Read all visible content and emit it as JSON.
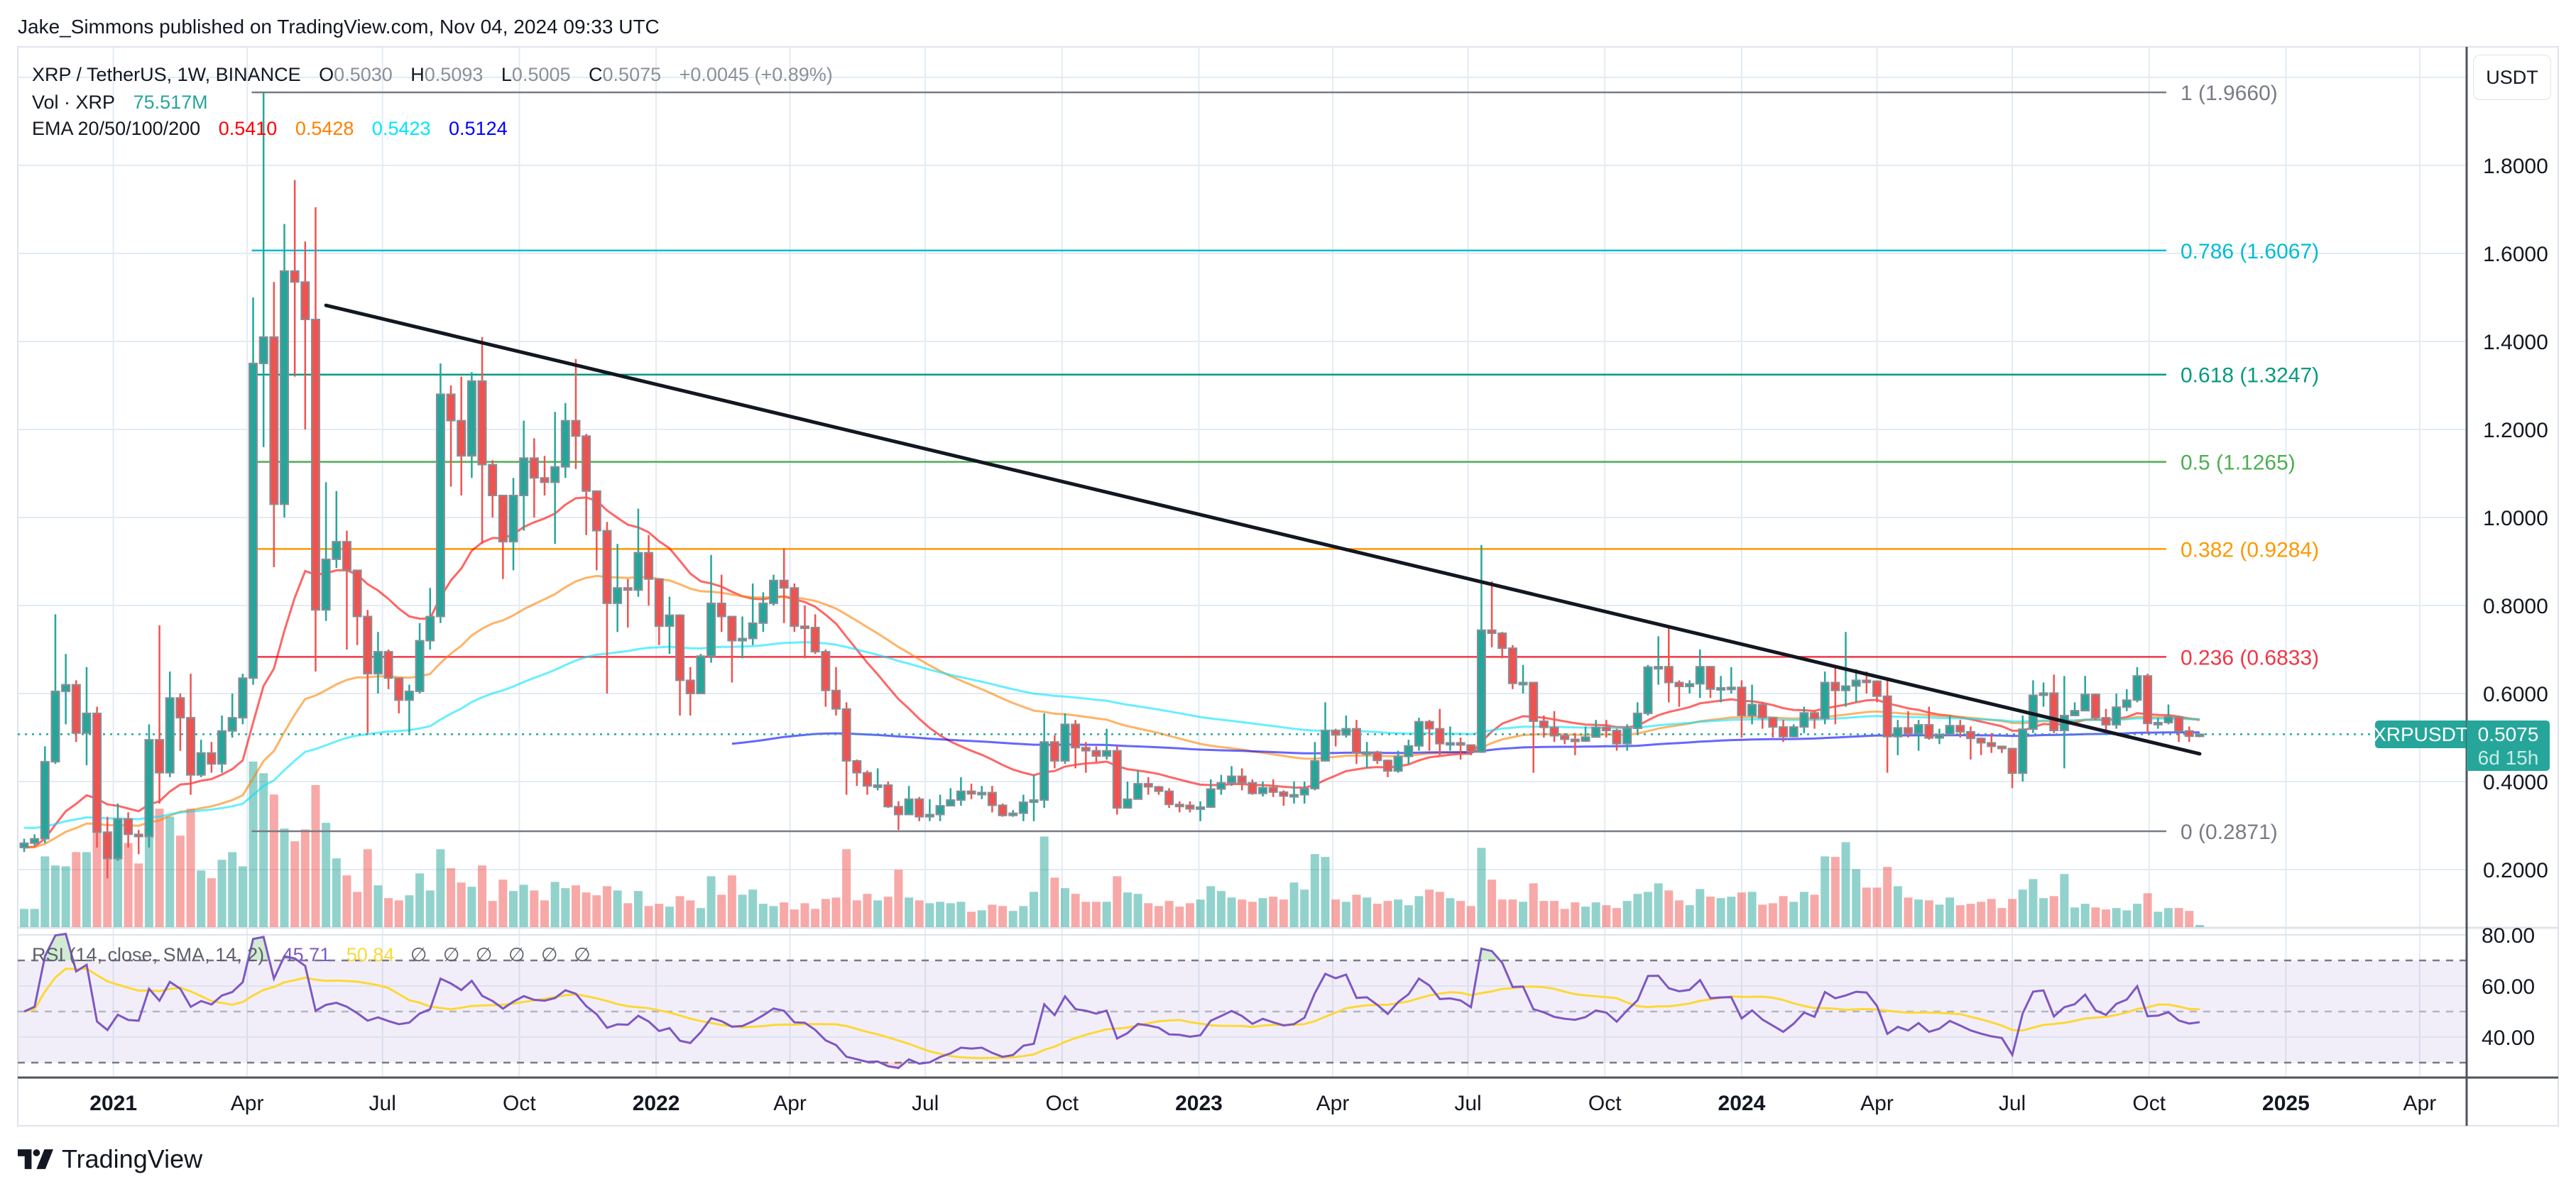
{
  "header": {
    "publisher_line": "Jake_Simmons published on TradingView.com, Nov 04, 2024 09:33 UTC"
  },
  "legend": {
    "symbol": "XRP / TetherUS, 1W, BINANCE",
    "o_label": "O",
    "o_value": "0.5030",
    "h_label": "H",
    "h_value": "0.5093",
    "l_label": "L",
    "l_value": "0.5005",
    "c_label": "C",
    "c_value": "0.5075",
    "change": "+0.0045 (+0.89%)",
    "vol_label": "Vol · XRP",
    "vol_value": "75.517M",
    "ema_label": "EMA 20/50/100/200",
    "ema_values": [
      "0.5410",
      "0.5428",
      "0.5423",
      "0.5124"
    ]
  },
  "price_axis": {
    "currency": "USDT",
    "ticks": [
      "1.8000",
      "1.6000",
      "1.4000",
      "1.2000",
      "1.0000",
      "0.8000",
      "0.6000",
      "0.4000",
      "0.2000"
    ]
  },
  "price_tag": {
    "symbol": "XRPUSDT",
    "price": "0.5075",
    "countdown": "6d 15h",
    "color": "#26a69a"
  },
  "rsi": {
    "legend": "RSI (14, close, SMA, 14, 2)",
    "value": "45.71",
    "sma_value": "50.84",
    "na_values": [
      "∅",
      "∅",
      "∅",
      "∅",
      "∅",
      "∅"
    ],
    "axis_ticks": [
      "80.00",
      "60.00",
      "40.00"
    ],
    "upper": 70,
    "middle": 50,
    "lower": 30,
    "line_color": "#7e57c2",
    "sma_color": "#fdd835"
  },
  "time_axis": [
    {
      "date": "2021-01-01",
      "label": "2021",
      "year": true
    },
    {
      "date": "2021-04-01",
      "label": "Apr"
    },
    {
      "date": "2021-07-01",
      "label": "Jul"
    },
    {
      "date": "2021-10-01",
      "label": "Oct"
    },
    {
      "date": "2022-01-01",
      "label": "2022",
      "year": true
    },
    {
      "date": "2022-04-01",
      "label": "Apr"
    },
    {
      "date": "2022-07-01",
      "label": "Jul"
    },
    {
      "date": "2022-10-01",
      "label": "Oct"
    },
    {
      "date": "2023-01-01",
      "label": "2023",
      "year": true
    },
    {
      "date": "2023-04-01",
      "label": "Apr"
    },
    {
      "date": "2023-07-01",
      "label": "Jul"
    },
    {
      "date": "2023-10-01",
      "label": "Oct"
    },
    {
      "date": "2024-01-01",
      "label": "2024",
      "year": true
    },
    {
      "date": "2024-04-01",
      "label": "Apr"
    },
    {
      "date": "2024-07-01",
      "label": "Jul"
    },
    {
      "date": "2024-10-01",
      "label": "Oct"
    },
    {
      "date": "2025-01-01",
      "label": "2025",
      "year": true
    },
    {
      "date": "2025-04-01",
      "label": "Apr"
    }
  ],
  "footer": {
    "brand": "TradingView"
  },
  "colors": {
    "up": "#26a69a",
    "down": "#ef5350",
    "trendline": "#131722"
  },
  "chart_data": {
    "type": "candlestick",
    "title": "XRP / TetherUS, 1W, BINANCE",
    "interval": "1W",
    "start_week": "2020-11-02",
    "first_open": 0.25,
    "ylim": [
      0.12,
      2.1
    ],
    "grid": true,
    "candles": {
      "close": [
        0.26,
        0.27,
        0.445,
        0.605,
        0.62,
        0.51,
        0.555,
        0.285,
        0.225,
        0.315,
        0.28,
        0.275,
        0.495,
        0.42,
        0.59,
        0.545,
        0.415,
        0.465,
        0.44,
        0.515,
        0.545,
        0.635,
        1.35,
        1.41,
        1.03,
        1.56,
        1.535,
        1.45,
        0.79,
        0.905,
        0.945,
        0.88,
        0.775,
        0.645,
        0.695,
        0.635,
        0.585,
        0.605,
        0.72,
        0.775,
        1.28,
        1.22,
        1.14,
        1.31,
        1.12,
        1.05,
        0.945,
        1.05,
        1.135,
        1.09,
        1.08,
        1.115,
        1.22,
        1.185,
        1.06,
        0.97,
        0.805,
        0.84,
        0.835,
        0.92,
        0.86,
        0.753,
        0.778,
        0.63,
        0.6,
        0.685,
        0.805,
        0.775,
        0.72,
        0.725,
        0.76,
        0.805,
        0.857,
        0.84,
        0.753,
        0.75,
        0.695,
        0.607,
        0.565,
        0.447,
        0.42,
        0.39,
        0.392,
        0.343,
        0.325,
        0.36,
        0.32,
        0.325,
        0.345,
        0.358,
        0.378,
        0.372,
        0.375,
        0.346,
        0.323,
        0.328,
        0.353,
        0.358,
        0.49,
        0.447,
        0.53,
        0.477,
        0.47,
        0.458,
        0.47,
        0.34,
        0.36,
        0.395,
        0.388,
        0.378,
        0.348,
        0.346,
        0.338,
        0.342,
        0.383,
        0.397,
        0.412,
        0.397,
        0.373,
        0.386,
        0.376,
        0.367,
        0.37,
        0.384,
        0.447,
        0.516,
        0.506,
        0.52,
        0.465,
        0.467,
        0.448,
        0.424,
        0.457,
        0.481,
        0.536,
        0.52,
        0.486,
        0.488,
        0.483,
        0.467,
        0.744,
        0.737,
        0.703,
        0.623,
        0.625,
        0.537,
        0.523,
        0.504,
        0.496,
        0.492,
        0.501,
        0.523,
        0.516,
        0.486,
        0.521,
        0.555,
        0.66,
        0.661,
        0.625,
        0.616,
        0.622,
        0.661,
        0.61,
        0.613,
        0.614,
        0.55,
        0.575,
        0.545,
        0.524,
        0.502,
        0.524,
        0.556,
        0.543,
        0.625,
        0.607,
        0.617,
        0.63,
        0.628,
        0.594,
        0.502,
        0.522,
        0.509,
        0.529,
        0.499,
        0.507,
        0.527,
        0.513,
        0.498,
        0.488,
        0.48,
        0.475,
        0.419,
        0.519,
        0.596,
        0.601,
        0.516,
        0.55,
        0.561,
        0.598,
        0.545,
        0.529,
        0.569,
        0.585,
        0.64,
        0.532,
        0.534,
        0.547,
        0.515,
        0.503,
        0.5075
      ],
      "high": [
        0.27,
        0.28,
        0.48,
        0.78,
        0.69,
        0.63,
        0.66,
        0.57,
        0.32,
        0.35,
        0.33,
        0.29,
        0.53,
        0.755,
        0.65,
        0.6,
        0.645,
        0.495,
        0.49,
        0.55,
        0.6,
        0.645,
        1.5,
        1.966,
        1.535,
        1.667,
        1.767,
        1.627,
        1.705,
        1.08,
        1.06,
        0.97,
        0.87,
        0.79,
        0.74,
        0.7,
        0.62,
        0.62,
        0.76,
        0.84,
        1.35,
        1.3,
        1.32,
        1.33,
        1.41,
        1.13,
        1.05,
        1.09,
        1.22,
        1.18,
        1.14,
        1.24,
        1.26,
        1.36,
        1.19,
        1.06,
        0.99,
        0.94,
        0.86,
        1.02,
        0.96,
        0.86,
        0.82,
        0.78,
        0.66,
        0.69,
        0.915,
        0.87,
        0.775,
        0.775,
        0.85,
        0.83,
        0.87,
        0.93,
        0.85,
        0.8,
        0.78,
        0.7,
        0.66,
        0.58,
        0.45,
        0.425,
        0.43,
        0.4,
        0.355,
        0.39,
        0.365,
        0.36,
        0.37,
        0.385,
        0.41,
        0.395,
        0.39,
        0.39,
        0.35,
        0.335,
        0.37,
        0.415,
        0.555,
        0.505,
        0.555,
        0.54,
        0.49,
        0.48,
        0.52,
        0.48,
        0.4,
        0.425,
        0.41,
        0.39,
        0.385,
        0.355,
        0.355,
        0.355,
        0.405,
        0.415,
        0.435,
        0.43,
        0.405,
        0.4,
        0.405,
        0.38,
        0.4,
        0.4,
        0.49,
        0.58,
        0.52,
        0.55,
        0.54,
        0.49,
        0.47,
        0.45,
        0.47,
        0.495,
        0.545,
        0.54,
        0.565,
        0.525,
        0.5,
        0.48,
        0.937,
        0.855,
        0.74,
        0.71,
        0.665,
        0.625,
        0.55,
        0.56,
        0.51,
        0.51,
        0.525,
        0.54,
        0.54,
        0.52,
        0.53,
        0.58,
        0.665,
        0.73,
        0.75,
        0.63,
        0.63,
        0.7,
        0.66,
        0.64,
        0.66,
        0.63,
        0.62,
        0.58,
        0.54,
        0.54,
        0.53,
        0.57,
        0.56,
        0.65,
        0.66,
        0.74,
        0.655,
        0.65,
        0.63,
        0.63,
        0.54,
        0.56,
        0.54,
        0.57,
        0.52,
        0.55,
        0.54,
        0.525,
        0.5,
        0.51,
        0.48,
        0.47,
        0.55,
        0.63,
        0.625,
        0.643,
        0.64,
        0.58,
        0.64,
        0.6,
        0.565,
        0.6,
        0.61,
        0.66,
        0.645,
        0.545,
        0.575,
        0.55,
        0.525,
        0.5093
      ],
      "low": [
        0.24,
        0.255,
        0.26,
        0.44,
        0.53,
        0.49,
        0.437,
        0.25,
        0.18,
        0.22,
        0.25,
        0.235,
        0.25,
        0.35,
        0.41,
        0.47,
        0.37,
        0.41,
        0.42,
        0.42,
        0.5,
        0.53,
        0.62,
        1.16,
        0.887,
        1.0,
        1.32,
        1.2,
        0.65,
        0.765,
        0.885,
        0.7,
        0.71,
        0.51,
        0.6,
        0.61,
        0.555,
        0.51,
        0.6,
        0.7,
        0.76,
        1.07,
        1.05,
        1.09,
        0.94,
        1.0,
        0.86,
        0.88,
        0.97,
        1.0,
        1.05,
        0.94,
        1.09,
        1.11,
        0.96,
        0.88,
        0.6,
        0.74,
        0.75,
        0.82,
        0.8,
        0.71,
        0.69,
        0.55,
        0.55,
        0.6,
        0.67,
        0.74,
        0.625,
        0.68,
        0.71,
        0.74,
        0.8,
        0.76,
        0.74,
        0.68,
        0.69,
        0.57,
        0.55,
        0.37,
        0.39,
        0.37,
        0.38,
        0.34,
        0.29,
        0.33,
        0.31,
        0.31,
        0.31,
        0.345,
        0.345,
        0.36,
        0.36,
        0.33,
        0.32,
        0.32,
        0.31,
        0.31,
        0.34,
        0.43,
        0.44,
        0.43,
        0.42,
        0.445,
        0.45,
        0.325,
        0.34,
        0.36,
        0.37,
        0.37,
        0.34,
        0.33,
        0.33,
        0.31,
        0.34,
        0.37,
        0.39,
        0.38,
        0.37,
        0.366,
        0.365,
        0.345,
        0.35,
        0.35,
        0.38,
        0.45,
        0.48,
        0.5,
        0.44,
        0.43,
        0.44,
        0.41,
        0.42,
        0.44,
        0.47,
        0.47,
        0.46,
        0.47,
        0.45,
        0.46,
        0.465,
        0.705,
        0.68,
        0.61,
        0.6,
        0.42,
        0.5,
        0.49,
        0.485,
        0.46,
        0.49,
        0.5,
        0.5,
        0.47,
        0.47,
        0.51,
        0.55,
        0.62,
        0.58,
        0.57,
        0.6,
        0.59,
        0.59,
        0.58,
        0.6,
        0.5,
        0.53,
        0.52,
        0.5,
        0.49,
        0.5,
        0.51,
        0.52,
        0.53,
        0.53,
        0.57,
        0.58,
        0.6,
        0.58,
        0.42,
        0.46,
        0.5,
        0.47,
        0.495,
        0.485,
        0.505,
        0.5,
        0.45,
        0.46,
        0.465,
        0.465,
        0.385,
        0.4,
        0.51,
        0.57,
        0.51,
        0.43,
        0.55,
        0.56,
        0.54,
        0.51,
        0.52,
        0.56,
        0.58,
        0.51,
        0.52,
        0.53,
        0.49,
        0.49,
        0.5005
      ],
      "volume_m": [
        640,
        640,
        2490,
        2170,
        2140,
        2640,
        2640,
        3330,
        3170,
        2500,
        2960,
        2240,
        3890,
        4170,
        3890,
        3220,
        4170,
        1990,
        1720,
        2370,
        2640,
        2140,
        5830,
        5420,
        4670,
        3470,
        3020,
        3440,
        5000,
        3670,
        2420,
        1820,
        1240,
        2740,
        1470,
        1020,
        940,
        1120,
        1890,
        1290,
        2740,
        2070,
        1570,
        1420,
        2170,
        920,
        1670,
        1270,
        1490,
        1290,
        940,
        1590,
        1370,
        1470,
        1220,
        1120,
        1440,
        1290,
        840,
        1270,
        740,
        820,
        720,
        1090,
        940,
        670,
        1790,
        1140,
        1820,
        1140,
        1320,
        820,
        740,
        870,
        620,
        840,
        640,
        990,
        1040,
        2740,
        940,
        1170,
        940,
        1070,
        2020,
        1040,
        940,
        840,
        890,
        840,
        890,
        540,
        590,
        790,
        740,
        570,
        740,
        1240,
        3190,
        1740,
        1370,
        1170,
        890,
        890,
        890,
        1790,
        1220,
        1170,
        840,
        740,
        920,
        720,
        840,
        970,
        1440,
        1270,
        1040,
        970,
        890,
        1020,
        1070,
        970,
        1570,
        1320,
        2570,
        2470,
        970,
        890,
        1140,
        1040,
        820,
        920,
        970,
        770,
        1090,
        1320,
        1240,
        1020,
        920,
        740,
        2790,
        1670,
        970,
        970,
        890,
        1540,
        920,
        920,
        640,
        870,
        720,
        870,
        770,
        670,
        920,
        1170,
        1240,
        1540,
        1290,
        940,
        770,
        1340,
        1070,
        1020,
        1070,
        1220,
        1240,
        790,
        840,
        1090,
        890,
        1240,
        1140,
        2490,
        2470,
        2990,
        2040,
        1390,
        1390,
        2120,
        1440,
        1040,
        970,
        940,
        790,
        1040,
        770,
        820,
        890,
        990,
        670,
        990,
        1320,
        1690,
        1020,
        1090,
        1870,
        690,
        820,
        690,
        620,
        670,
        590,
        820,
        1190,
        540,
        670,
        670,
        570,
        75.517
      ]
    },
    "ema": [
      {
        "period": 20,
        "value": "0.5410",
        "color": "#ff0000",
        "start_week": 0,
        "start_value": 0.25
      },
      {
        "period": 50,
        "value": "0.5428",
        "color": "#ff8000",
        "start_week": 0,
        "start_value": 0.25
      },
      {
        "period": 100,
        "value": "0.5423",
        "color": "#00e5ff",
        "start_week": 0,
        "start_value": 0.295
      },
      {
        "period": 200,
        "value": "0.5124",
        "color": "#0000ff",
        "start_week": 68,
        "start_value": 0.486
      }
    ],
    "trendline": {
      "from": {
        "week": 29,
        "price": 1.482
      },
      "to": {
        "week": 209,
        "price": 0.463
      }
    },
    "fib_retracement": {
      "from_week": 22,
      "to_week": 206,
      "levels": [
        {
          "ratio": "1",
          "price": 1.966,
          "label": "1 (1.9660)",
          "color": "#787b86"
        },
        {
          "ratio": "0.786",
          "price": 1.6067,
          "label": "0.786 (1.6067)",
          "color": "#00bcd4"
        },
        {
          "ratio": "0.618",
          "price": 1.3247,
          "label": "0.618 (1.3247)",
          "color": "#089981"
        },
        {
          "ratio": "0.5",
          "price": 1.1265,
          "label": "0.5 (1.1265)",
          "color": "#4caf50"
        },
        {
          "ratio": "0.382",
          "price": 0.9284,
          "label": "0.382 (0.9284)",
          "color": "#ff9800"
        },
        {
          "ratio": "0.236",
          "price": 0.6833,
          "label": "0.236 (0.6833)",
          "color": "#f23645"
        },
        {
          "ratio": "0",
          "price": 0.2871,
          "label": "0 (0.2871)",
          "color": "#787b86"
        }
      ]
    },
    "last_price": 0.5075
  }
}
